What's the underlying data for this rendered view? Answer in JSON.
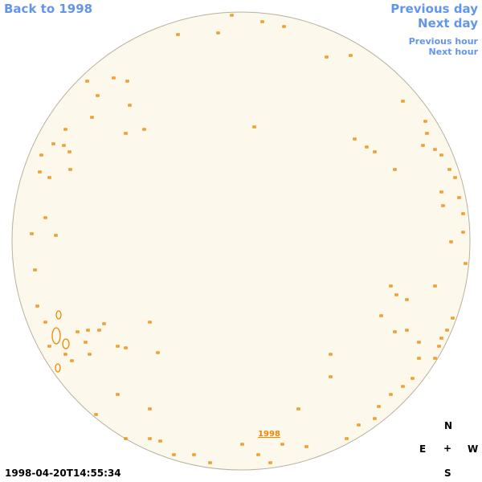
{
  "navigation": {
    "back": "Back to 1998",
    "previous_day": "Previous day",
    "next_day": "Next day",
    "previous_hour": "Previous hour",
    "next_hour": "Next hour"
  },
  "image": {
    "year_link": "1998",
    "timestamp": "1998-04-20T14:55:34"
  },
  "compass": {
    "north": "N",
    "east": "E",
    "center": "+",
    "west": "W",
    "south": "S"
  }
}
